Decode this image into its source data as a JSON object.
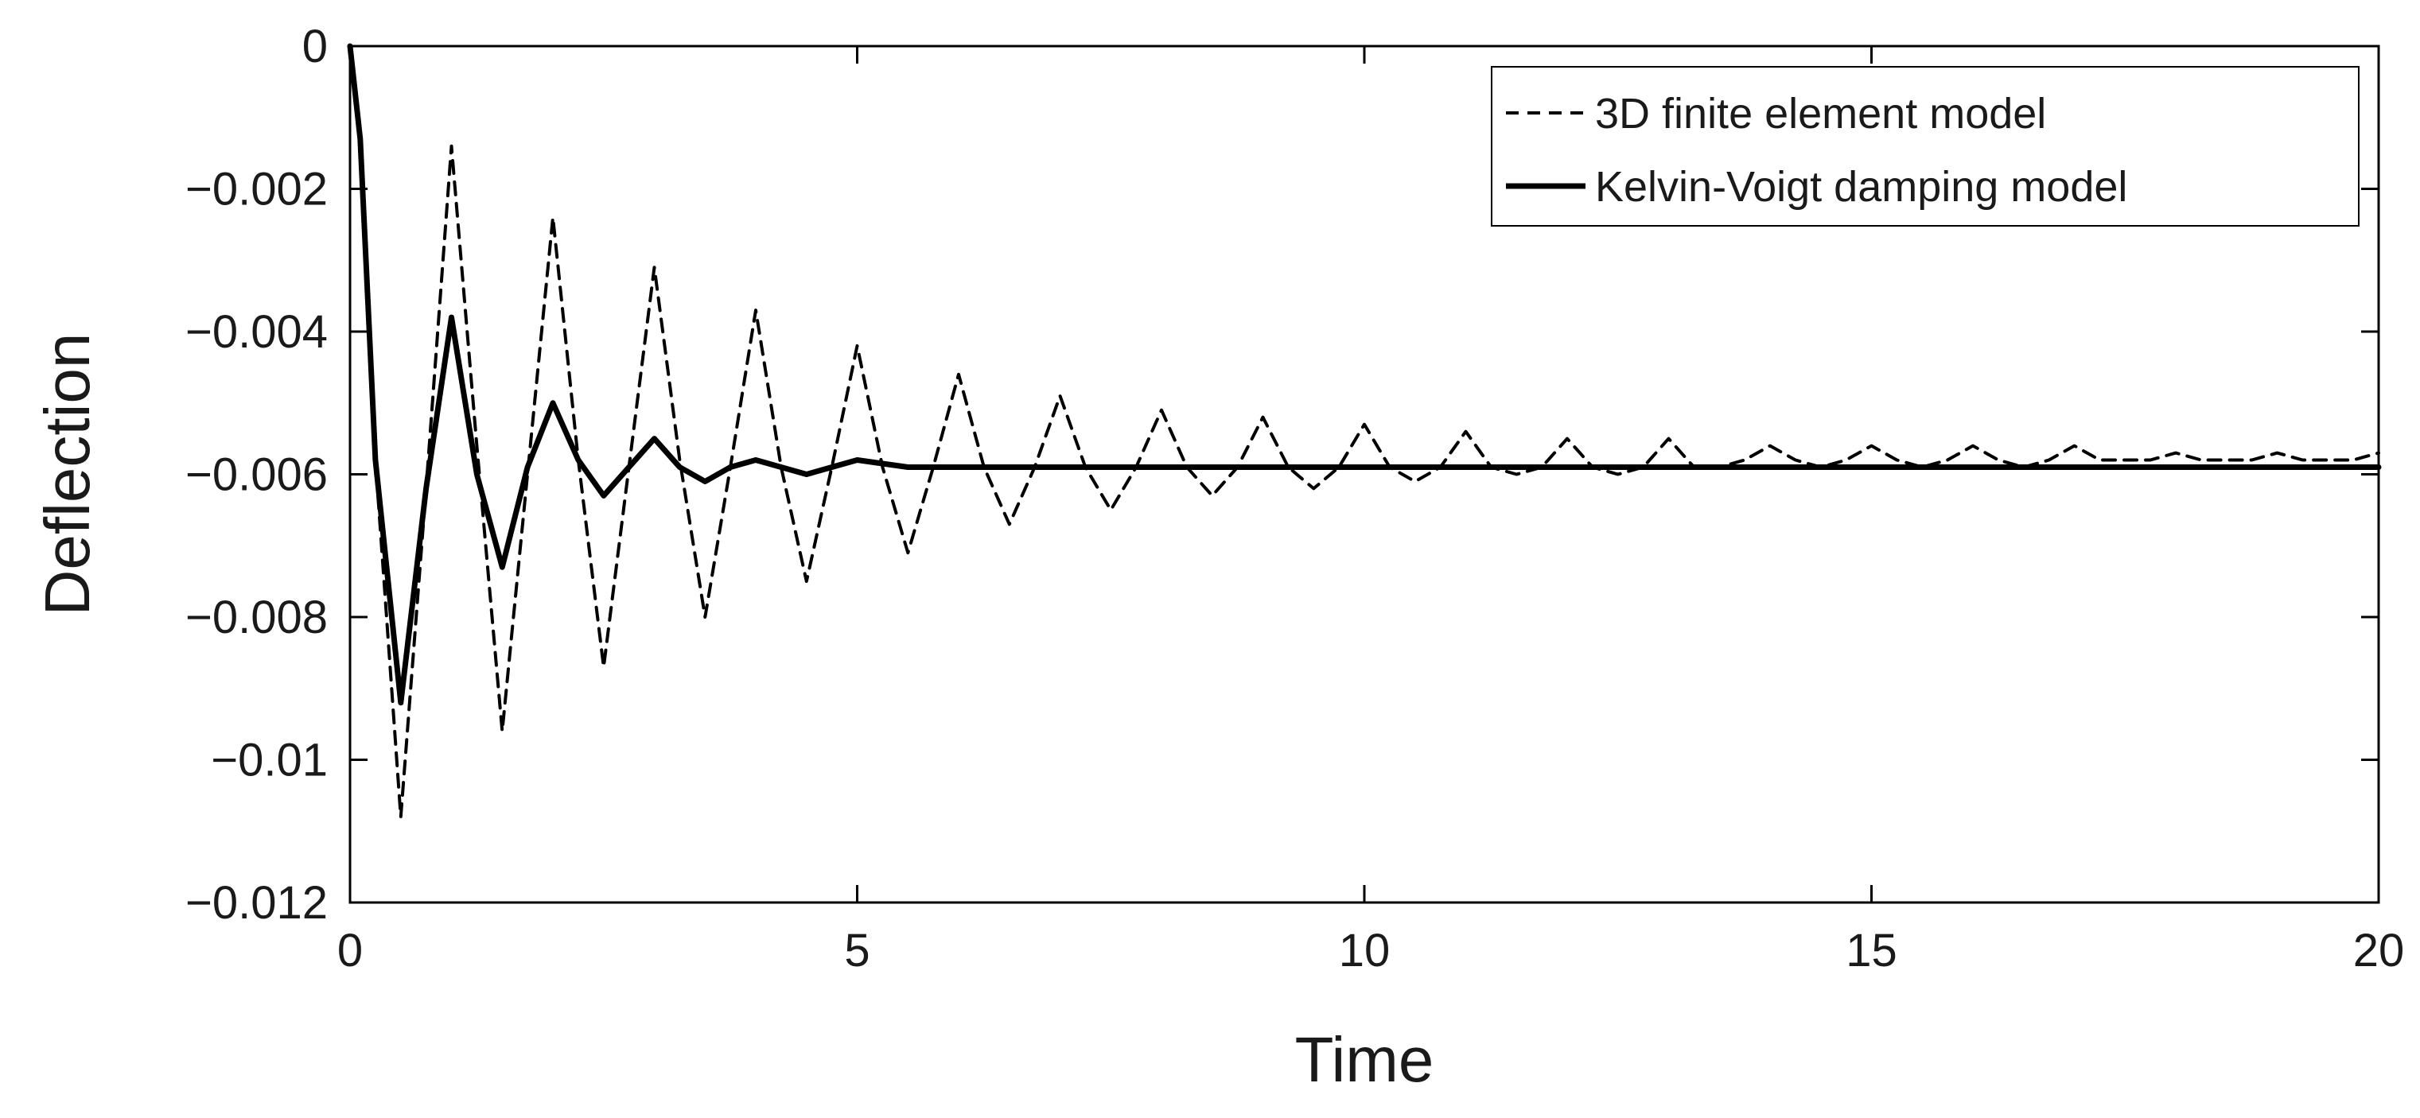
{
  "chart_data": {
    "type": "line",
    "title": "",
    "xlabel": "Time",
    "ylabel": "Deflection",
    "xlim": [
      0,
      20
    ],
    "ylim": [
      -0.012,
      0
    ],
    "grid": false,
    "legend_position": "top-right",
    "x_ticks": [
      0,
      5,
      10,
      15,
      20
    ],
    "x_tick_labels": [
      "0",
      "5",
      "10",
      "15",
      "20"
    ],
    "y_ticks": [
      0,
      -0.002,
      -0.004,
      -0.006,
      -0.008,
      -0.01,
      -0.012
    ],
    "y_tick_labels": [
      "0",
      "−0.002",
      "−0.004",
      "−0.006",
      "−0.008",
      "−0.01",
      "−0.012"
    ],
    "series": [
      {
        "name": "3D finite element model",
        "color": "#000000",
        "style": "dashed",
        "x": [
          0,
          0.1,
          0.25,
          0.5,
          0.75,
          1.0,
          1.25,
          1.5,
          1.75,
          2.0,
          2.25,
          2.5,
          2.75,
          3.0,
          3.25,
          3.5,
          3.75,
          4.0,
          4.25,
          4.5,
          4.75,
          5.0,
          5.25,
          5.5,
          5.75,
          6.0,
          6.25,
          6.5,
          6.75,
          7.0,
          7.25,
          7.5,
          7.75,
          8.0,
          8.25,
          8.5,
          8.75,
          9.0,
          9.25,
          9.5,
          9.75,
          10.0,
          10.25,
          10.5,
          10.75,
          11.0,
          11.25,
          11.5,
          11.75,
          12.0,
          12.25,
          12.5,
          12.75,
          13.0,
          13.25,
          13.5,
          13.75,
          14.0,
          14.25,
          14.5,
          14.75,
          15.0,
          15.25,
          15.5,
          15.75,
          16.0,
          16.25,
          16.5,
          16.75,
          17.0,
          17.25,
          17.5,
          17.75,
          18.0,
          18.25,
          18.5,
          18.75,
          19.0,
          19.25,
          19.5,
          19.75,
          20.0
        ],
        "y": [
          0,
          -0.0012,
          -0.0058,
          -0.0108,
          -0.0062,
          -0.0014,
          -0.0056,
          -0.0096,
          -0.006,
          -0.0024,
          -0.0058,
          -0.0087,
          -0.0059,
          -0.0031,
          -0.0058,
          -0.008,
          -0.0059,
          -0.0037,
          -0.0059,
          -0.0075,
          -0.0059,
          -0.0042,
          -0.0059,
          -0.0071,
          -0.0059,
          -0.0046,
          -0.0059,
          -0.0067,
          -0.0059,
          -0.0049,
          -0.0059,
          -0.0065,
          -0.0059,
          -0.0051,
          -0.0059,
          -0.0063,
          -0.0059,
          -0.0052,
          -0.0059,
          -0.0062,
          -0.0059,
          -0.0053,
          -0.0059,
          -0.0061,
          -0.0059,
          -0.0054,
          -0.0059,
          -0.006,
          -0.0059,
          -0.0055,
          -0.0059,
          -0.006,
          -0.0059,
          -0.0055,
          -0.0059,
          -0.0059,
          -0.0058,
          -0.0056,
          -0.0058,
          -0.0059,
          -0.0058,
          -0.0056,
          -0.0058,
          -0.0059,
          -0.0058,
          -0.0056,
          -0.0058,
          -0.0059,
          -0.0058,
          -0.0056,
          -0.0058,
          -0.0058,
          -0.0058,
          -0.0057,
          -0.0058,
          -0.0058,
          -0.0058,
          -0.0057,
          -0.0058,
          -0.0058,
          -0.0058,
          -0.0057
        ]
      },
      {
        "name": "Kelvin-Voigt damping model",
        "color": "#000000",
        "style": "solid",
        "x": [
          0,
          0.1,
          0.25,
          0.5,
          0.75,
          1.0,
          1.25,
          1.5,
          1.75,
          2.0,
          2.25,
          2.5,
          2.75,
          3.0,
          3.25,
          3.5,
          3.75,
          4.0,
          4.25,
          4.5,
          4.75,
          5.0,
          5.5,
          6.0,
          6.5,
          7.0,
          7.5,
          8.0,
          9.0,
          10.0,
          11.0,
          12.0,
          13.0,
          14.0,
          15.0,
          16.0,
          17.0,
          18.0,
          19.0,
          20.0
        ],
        "y": [
          0,
          -0.0013,
          -0.0058,
          -0.0092,
          -0.0062,
          -0.0038,
          -0.006,
          -0.0073,
          -0.0059,
          -0.005,
          -0.0058,
          -0.0063,
          -0.0059,
          -0.0055,
          -0.0059,
          -0.0061,
          -0.0059,
          -0.0058,
          -0.0059,
          -0.006,
          -0.0059,
          -0.0058,
          -0.0059,
          -0.0059,
          -0.0059,
          -0.0059,
          -0.0059,
          -0.0059,
          -0.0059,
          -0.0059,
          -0.0059,
          -0.0059,
          -0.0059,
          -0.0059,
          -0.0059,
          -0.0059,
          -0.0059,
          -0.0059,
          -0.0059,
          -0.0059
        ]
      }
    ]
  }
}
